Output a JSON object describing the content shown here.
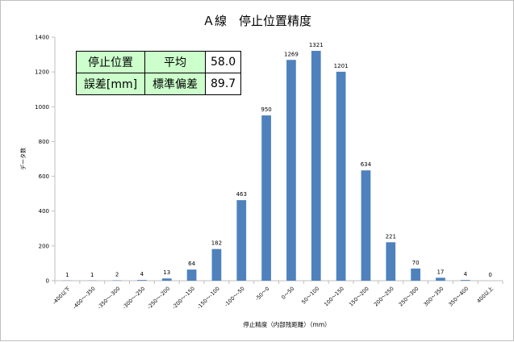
{
  "title": "Ａ線　停止位置精度",
  "stats_table": {
    "row1": [
      "停止位置",
      "平均",
      "58.0"
    ],
    "row2": [
      "誤差[mm]",
      "標準偏差",
      "89.7"
    ]
  },
  "colors": {
    "bar": "#4f81bd",
    "table_green": "#ccffcc",
    "axis": "#bfbfbf"
  },
  "chart_data": {
    "type": "bar",
    "title": "Ａ線　停止位置精度",
    "xlabel": "停止精度（内部残距離）（mm）",
    "ylabel": "データ数",
    "ylim": [
      0,
      1400
    ],
    "yticks": [
      0,
      200,
      400,
      600,
      800,
      1000,
      1200,
      1400
    ],
    "grid": false,
    "categories": [
      "-400以下",
      "-400～-350",
      "-350～-300",
      "-300～-250",
      "-250～-200",
      "-200～-150",
      "-150～-100",
      "-100～-50",
      "-50～0",
      "0～50",
      "50～100",
      "100～150",
      "150～200",
      "200～250",
      "250～300",
      "300～350",
      "350～400",
      "400以上"
    ],
    "values": [
      1,
      1,
      2,
      4,
      13,
      64,
      182,
      463,
      950,
      1269,
      1321,
      1201,
      634,
      221,
      70,
      17,
      4,
      0
    ],
    "data_labels": [
      "1",
      "1",
      "2",
      "4",
      "13",
      "64",
      "182",
      "463",
      "950",
      "1269",
      "1321",
      "1201",
      "634",
      "221",
      "70",
      "17",
      "4",
      "0"
    ]
  }
}
